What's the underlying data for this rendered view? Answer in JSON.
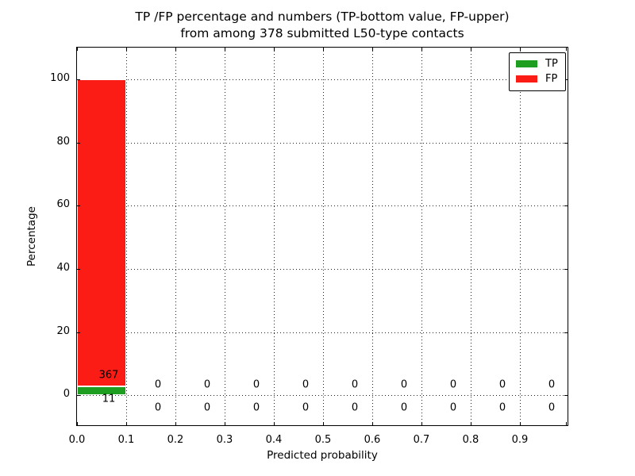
{
  "title": {
    "line1": "TP /FP percentage and numbers (TP-bottom value, FP-upper)",
    "line2": "from among 378 submitted L50-type contacts"
  },
  "axes": {
    "x_label": "Predicted probability",
    "y_label": "Percentage",
    "x_tick_labels": [
      "0.0",
      "0.1",
      "0.2",
      "0.3",
      "0.4",
      "0.5",
      "0.6",
      "0.7",
      "0.8",
      "0.9"
    ],
    "y_tick_labels": [
      "0",
      "20",
      "40",
      "60",
      "80",
      "100"
    ],
    "y_tick_values": [
      0,
      20,
      40,
      60,
      80,
      100
    ],
    "x_range": [
      0.0,
      1.0
    ],
    "y_range": [
      -10,
      110
    ]
  },
  "legend": {
    "items": [
      {
        "label": "TP",
        "color": "#1e9e20"
      },
      {
        "label": "FP",
        "color": "#fb1d15"
      }
    ]
  },
  "colors": {
    "tp": "#1e9e20",
    "fp": "#fb1d15",
    "text": "#000000",
    "background": "#ffffff"
  },
  "chart_data": {
    "type": "bar",
    "stacked": true,
    "title": "TP /FP percentage and numbers (TP-bottom value, FP-upper) from among 378 submitted L50-type contacts",
    "xlabel": "Predicted probability",
    "ylabel": "Percentage",
    "xlim": [
      0.0,
      1.0
    ],
    "ylim": [
      -10,
      110
    ],
    "grid": true,
    "legend_position": "upper right",
    "total_submitted": 378,
    "bin_width": 0.1,
    "bin_starts": [
      0.0,
      0.1,
      0.2,
      0.3,
      0.4,
      0.5,
      0.6,
      0.7,
      0.8,
      0.9
    ],
    "series": [
      {
        "name": "TP",
        "color": "#1e9e20",
        "counts": [
          11,
          0,
          0,
          0,
          0,
          0,
          0,
          0,
          0,
          0
        ]
      },
      {
        "name": "FP",
        "color": "#fb1d15",
        "counts": [
          367,
          0,
          0,
          0,
          0,
          0,
          0,
          0,
          0,
          0
        ]
      }
    ],
    "annotations_note": "FP count printed above TP count for each bin"
  }
}
